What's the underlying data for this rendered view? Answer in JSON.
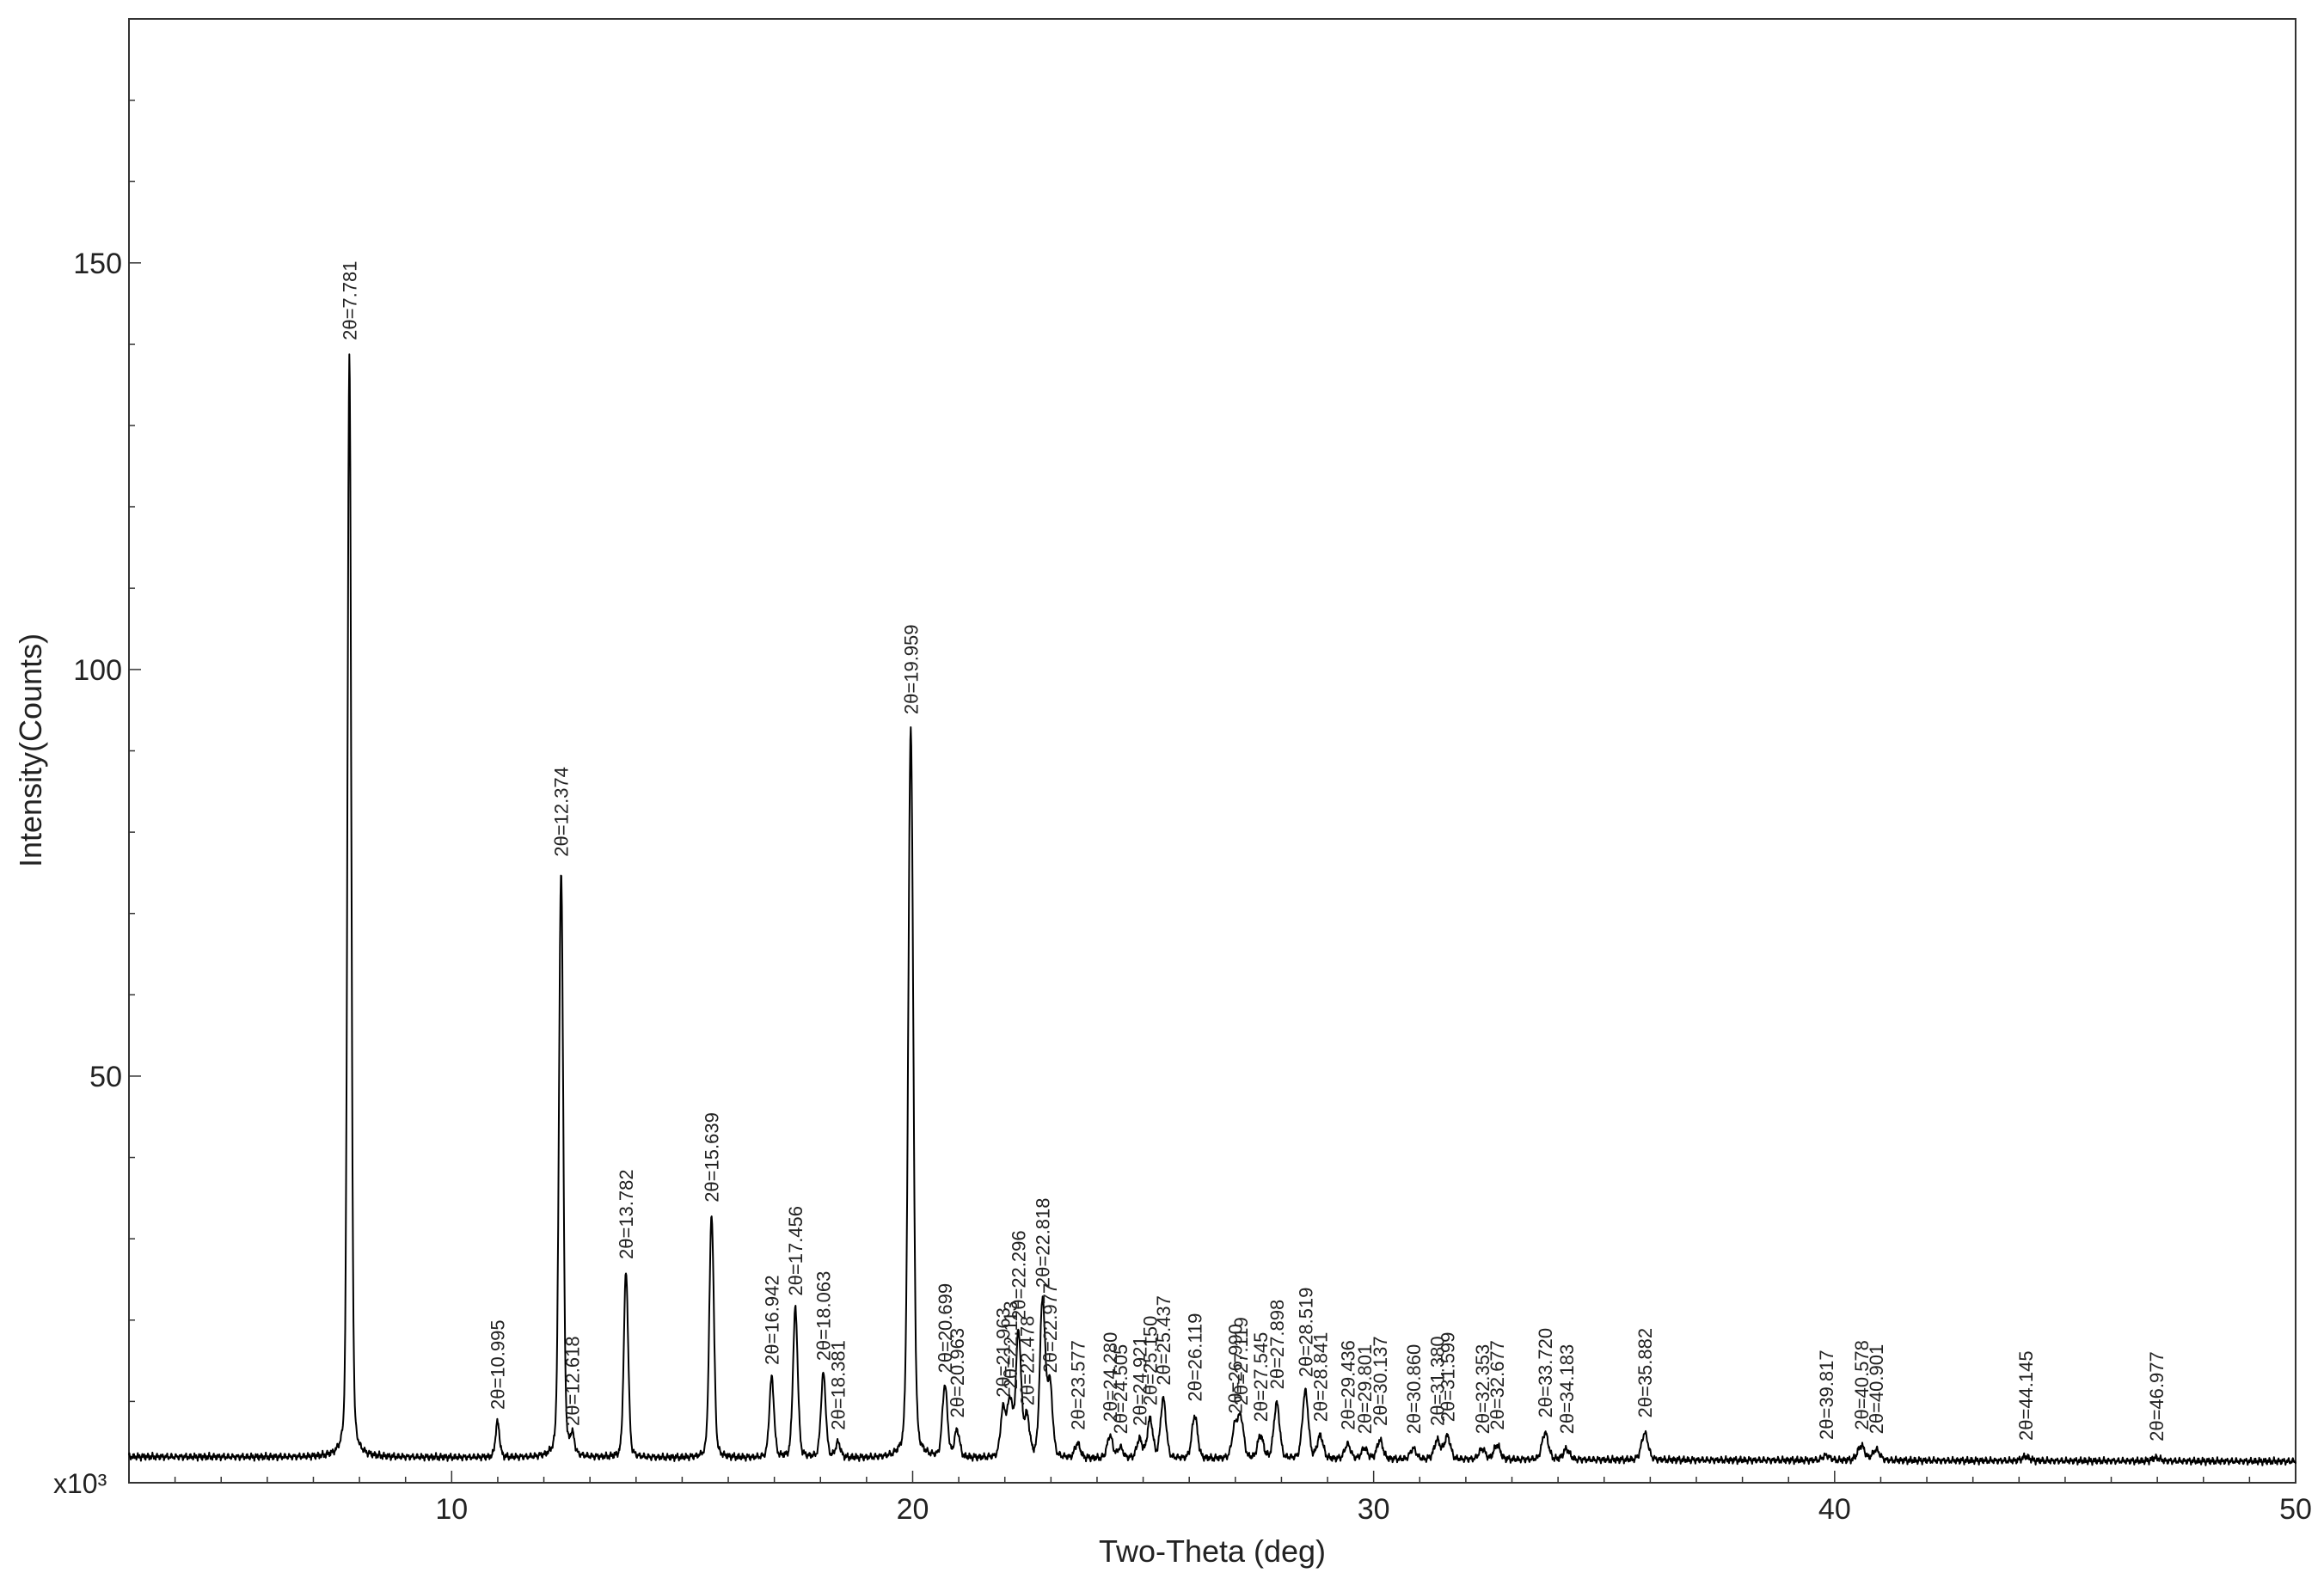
{
  "chart_data": {
    "type": "line",
    "xlabel": "Two-Theta (deg)",
    "ylabel": "Intensity(Counts)",
    "y_multiplier_label": "x10³",
    "xlim": [
      3,
      50
    ],
    "ylim": [
      0,
      180
    ],
    "x_ticks": [
      10,
      20,
      30,
      40,
      50
    ],
    "y_ticks": [
      50,
      100,
      150
    ],
    "grid": false,
    "line_color": "#000000",
    "baseline": 3.2,
    "peaks": [
      {
        "label": "2θ=7.781",
        "x": 7.781,
        "y": 139
      },
      {
        "label": "2θ=10.995",
        "x": 10.995,
        "y": 7.5
      },
      {
        "label": "2θ=12.374",
        "x": 12.374,
        "y": 75.5
      },
      {
        "label": "2θ=12.618",
        "x": 12.618,
        "y": 5.5
      },
      {
        "label": "2θ=13.782",
        "x": 13.782,
        "y": 26
      },
      {
        "label": "2θ=15.639",
        "x": 15.639,
        "y": 33
      },
      {
        "label": "2θ=16.942",
        "x": 16.942,
        "y": 13
      },
      {
        "label": "2θ=17.456",
        "x": 17.456,
        "y": 21.5
      },
      {
        "label": "2θ=18.063",
        "x": 18.063,
        "y": 13.5
      },
      {
        "label": "2θ=18.381",
        "x": 18.381,
        "y": 5
      },
      {
        "label": "2θ=19.959",
        "x": 19.959,
        "y": 93
      },
      {
        "label": "2θ=20.699",
        "x": 20.699,
        "y": 12
      },
      {
        "label": "2θ=20.963",
        "x": 20.963,
        "y": 6.5
      },
      {
        "label": "2θ=21.963",
        "x": 21.963,
        "y": 9
      },
      {
        "label": "2θ=22.113",
        "x": 22.113,
        "y": 10
      },
      {
        "label": "2θ=22.296",
        "x": 22.296,
        "y": 18.5
      },
      {
        "label": "2θ=22.478",
        "x": 22.478,
        "y": 8
      },
      {
        "label": "2θ=22.818",
        "x": 22.818,
        "y": 22.5
      },
      {
        "label": "2θ=22.977",
        "x": 22.977,
        "y": 12
      },
      {
        "label": "2θ=23.577",
        "x": 23.577,
        "y": 5
      },
      {
        "label": "2θ=24.280",
        "x": 24.28,
        "y": 6
      },
      {
        "label": "2θ=24.505",
        "x": 24.505,
        "y": 4.5
      },
      {
        "label": "2θ=24.921",
        "x": 24.921,
        "y": 5.5
      },
      {
        "label": "2θ=25.150",
        "x": 25.15,
        "y": 8
      },
      {
        "label": "2θ=25.437",
        "x": 25.437,
        "y": 10.5
      },
      {
        "label": "2θ=26.119",
        "x": 26.119,
        "y": 8.5
      },
      {
        "label": "2θ=26.990",
        "x": 26.99,
        "y": 7
      },
      {
        "label": "2θ=27.119",
        "x": 27.119,
        "y": 8
      },
      {
        "label": "2θ=27.545",
        "x": 27.545,
        "y": 6
      },
      {
        "label": "2θ=27.898",
        "x": 27.898,
        "y": 10
      },
      {
        "label": "2θ=28.519",
        "x": 28.519,
        "y": 11.5
      },
      {
        "label": "2θ=28.841",
        "x": 28.841,
        "y": 6
      },
      {
        "label": "2θ=29.436",
        "x": 29.436,
        "y": 5
      },
      {
        "label": "2θ=29.801",
        "x": 29.801,
        "y": 4.5
      },
      {
        "label": "2θ=30.137",
        "x": 30.137,
        "y": 5.5
      },
      {
        "label": "2θ=30.860",
        "x": 30.86,
        "y": 4.5
      },
      {
        "label": "2θ=31.380",
        "x": 31.38,
        "y": 5.5
      },
      {
        "label": "2θ=31.599",
        "x": 31.599,
        "y": 6
      },
      {
        "label": "2θ=32.353",
        "x": 32.353,
        "y": 4.5
      },
      {
        "label": "2θ=32.677",
        "x": 32.677,
        "y": 5
      },
      {
        "label": "2θ=33.720",
        "x": 33.72,
        "y": 6.5
      },
      {
        "label": "2θ=34.183",
        "x": 34.183,
        "y": 4.5
      },
      {
        "label": "2θ=35.882",
        "x": 35.882,
        "y": 6.5
      },
      {
        "label": "2θ=39.817",
        "x": 39.817,
        "y": 3.8
      },
      {
        "label": "2θ=40.578",
        "x": 40.578,
        "y": 5
      },
      {
        "label": "2θ=40.901",
        "x": 40.901,
        "y": 4.5
      },
      {
        "label": "2θ=44.145",
        "x": 44.145,
        "y": 3.7
      },
      {
        "label": "2θ=46.977",
        "x": 46.977,
        "y": 3.6
      }
    ]
  }
}
